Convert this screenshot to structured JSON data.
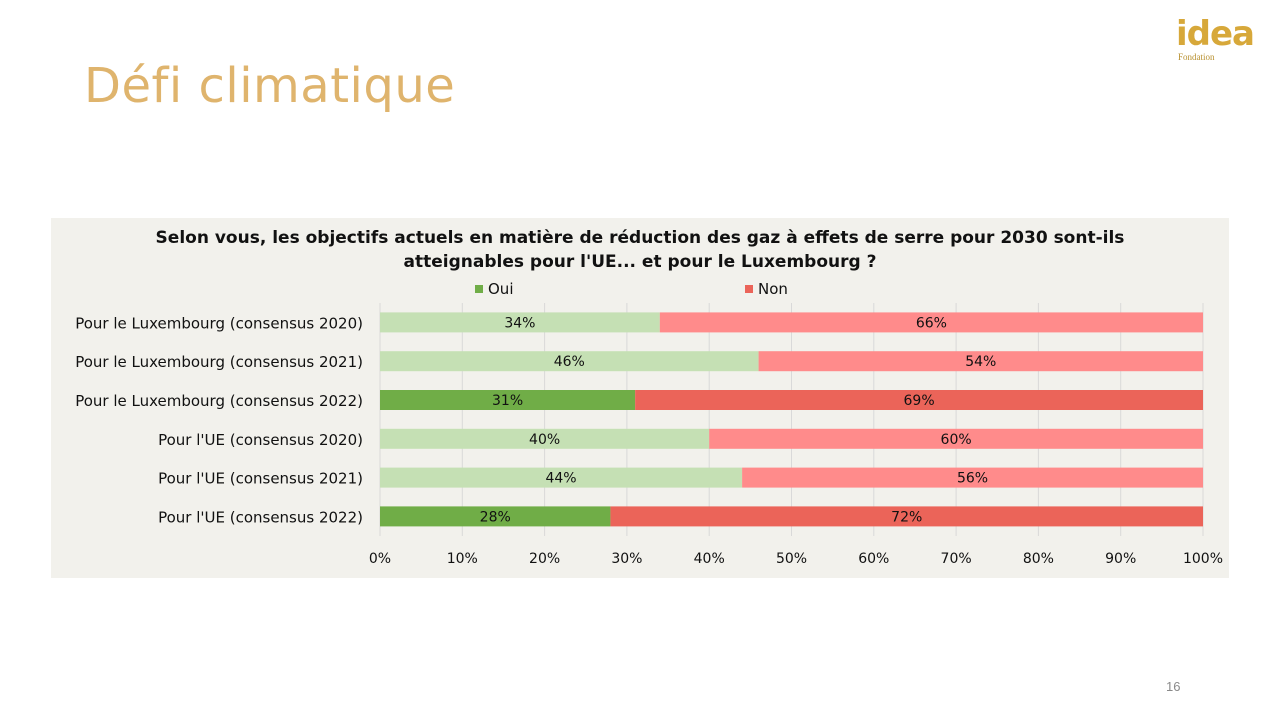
{
  "slide": {
    "title": "Défi climatique",
    "page_number": "16"
  },
  "logo": {
    "word": "idea",
    "sub": "Fondation"
  },
  "colors": {
    "oui_light": "#c5e0b4",
    "oui_dark": "#70ad47",
    "non_light": "#ff8b8b",
    "non_dark": "#eb6459",
    "panel_bg": "#f2f1ec",
    "title_color": "#dfb46d"
  },
  "chart_data": {
    "type": "bar",
    "orientation": "horizontal-stacked-100",
    "title_line1": "Selon vous, les objectifs actuels en matière de réduction des gaz à effets de serre pour 2030 sont-ils",
    "title_line2": "atteignables pour l'UE... et pour le Luxembourg ?",
    "categories": [
      "Pour le Luxembourg (consensus 2020)",
      "Pour le Luxembourg (consensus 2021)",
      "Pour le Luxembourg (consensus 2022)",
      "Pour l'UE (consensus 2020)",
      "Pour l'UE (consensus 2021)",
      "Pour l'UE (consensus 2022)"
    ],
    "highlight": [
      false,
      false,
      true,
      false,
      false,
      true
    ],
    "series": [
      {
        "name": "Oui",
        "values": [
          34,
          46,
          31,
          40,
          44,
          28
        ],
        "labels": [
          "34%",
          "46%",
          "31%",
          "40%",
          "44%",
          "28%"
        ]
      },
      {
        "name": "Non",
        "values": [
          66,
          54,
          69,
          60,
          56,
          72
        ],
        "labels": [
          "66%",
          "54%",
          "69%",
          "60%",
          "56%",
          "72%"
        ]
      }
    ],
    "xlim": [
      0,
      100
    ],
    "xticks": [
      "0%",
      "10%",
      "20%",
      "30%",
      "40%",
      "50%",
      "60%",
      "70%",
      "80%",
      "90%",
      "100%"
    ],
    "grid": true,
    "legend_position": "top"
  }
}
